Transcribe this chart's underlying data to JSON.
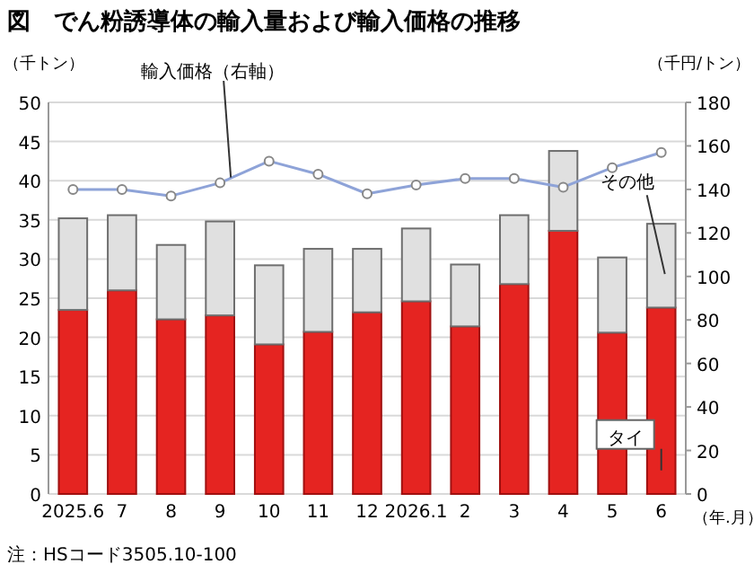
{
  "chart_data": {
    "type": "bar",
    "stacked": true,
    "title": "図　でん粉誘導体の輸入量および輸入価格の推移",
    "ylabel": "（千トン）",
    "y2label": "（千円/トン）",
    "xlabel": "（年.月）",
    "annotations": [
      "注：HSコード3505.10-100"
    ],
    "categories": [
      "2025.6",
      "7",
      "8",
      "9",
      "10",
      "11",
      "12",
      "2026.1",
      "2",
      "3",
      "4",
      "5",
      "6"
    ],
    "series": [
      {
        "name": "タイ",
        "color": "#e52421",
        "values": [
          23.5,
          26,
          22.3,
          22.8,
          19.1,
          20.7,
          23.2,
          24.6,
          21.4,
          26.8,
          33.6,
          20.6,
          23.8
        ]
      },
      {
        "name": "その他",
        "color": "#e0e0e0",
        "values": [
          11.7,
          9.6,
          9.5,
          12.0,
          10.1,
          10.6,
          8.1,
          9.3,
          7.9,
          8.8,
          10.2,
          9.6,
          10.7
        ]
      },
      {
        "name": "輸入価格（右軸）",
        "type": "line",
        "axis": "y2",
        "marker": "circle",
        "color": "#8ea3d8",
        "values": [
          140,
          140,
          137,
          143,
          153,
          147,
          138,
          142,
          145,
          145,
          141,
          150,
          157
        ]
      }
    ],
    "ylim": [
      0,
      50
    ],
    "yticks": [
      0,
      5,
      10,
      15,
      20,
      25,
      30,
      35,
      40,
      45,
      50
    ],
    "y2lim": [
      0,
      180
    ],
    "y2ticks": [
      0,
      20,
      40,
      60,
      80,
      100,
      120,
      140,
      160,
      180
    ],
    "grid": "y"
  }
}
